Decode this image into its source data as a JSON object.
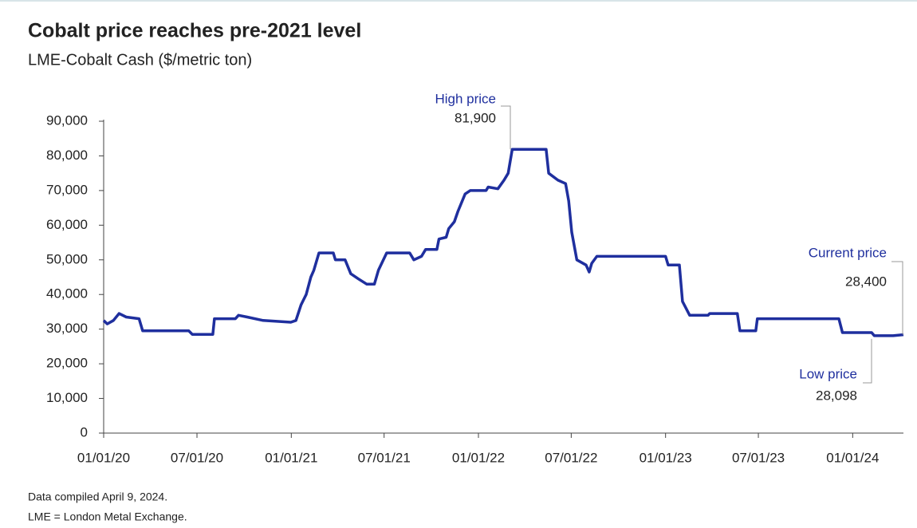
{
  "chart_data": {
    "type": "line",
    "title": "Cobalt price reaches pre-2021 level",
    "subtitle": "LME-Cobalt Cash ($/metric ton)",
    "x": [
      "2020-01-01",
      "2020-01-08",
      "2020-01-20",
      "2020-01-31",
      "2020-02-14",
      "2020-03-10",
      "2020-03-17",
      "2020-06-15",
      "2020-06-22",
      "2020-08-01",
      "2020-08-04",
      "2020-09-14",
      "2020-09-20",
      "2020-10-07",
      "2020-11-07",
      "2020-12-31",
      "2021-01-10",
      "2021-01-20",
      "2021-01-30",
      "2021-02-08",
      "2021-02-14",
      "2021-02-24",
      "2021-03-24",
      "2021-03-28",
      "2021-04-16",
      "2021-04-27",
      "2021-05-12",
      "2021-05-28",
      "2021-06-12",
      "2021-06-20",
      "2021-07-06",
      "2021-08-20",
      "2021-08-28",
      "2021-09-12",
      "2021-09-20",
      "2021-10-12",
      "2021-10-16",
      "2021-10-30",
      "2021-11-04",
      "2021-11-15",
      "2021-11-22",
      "2021-12-06",
      "2021-12-16",
      "2022-01-16",
      "2022-01-20",
      "2022-02-08",
      "2022-02-20",
      "2022-02-28",
      "2022-03-08",
      "2022-05-13",
      "2022-05-18",
      "2022-06-05",
      "2022-06-20",
      "2022-06-26",
      "2022-07-02",
      "2022-07-12",
      "2022-07-30",
      "2022-08-05",
      "2022-08-10",
      "2022-08-20",
      "2023-01-01",
      "2023-01-06",
      "2023-01-28",
      "2023-02-03",
      "2023-02-17",
      "2023-03-25",
      "2023-03-28",
      "2023-05-21",
      "2023-05-26",
      "2023-06-26",
      "2023-06-29",
      "2023-12-05",
      "2023-12-12",
      "2024-02-07",
      "2024-02-12",
      "2024-03-20",
      "2024-04-09"
    ],
    "values": [
      32500,
      31500,
      32500,
      34500,
      33500,
      33000,
      29500,
      29500,
      28500,
      28500,
      33000,
      33000,
      34000,
      33500,
      32500,
      32000,
      32500,
      37000,
      40000,
      45000,
      47000,
      52000,
      52000,
      50000,
      50000,
      46000,
      44500,
      43000,
      43000,
      47000,
      52000,
      52000,
      50000,
      51000,
      53000,
      53000,
      56000,
      56500,
      59000,
      61000,
      64000,
      69000,
      70000,
      70000,
      71000,
      70500,
      73000,
      75000,
      81900,
      81900,
      75000,
      73000,
      72000,
      67000,
      58000,
      50000,
      48500,
      46500,
      49000,
      51000,
      51000,
      48500,
      48500,
      38000,
      34000,
      34000,
      34500,
      34500,
      29500,
      29500,
      33000,
      33000,
      29000,
      29000,
      28098,
      28098,
      28400
    ],
    "color": "#1f2f9e",
    "xlim": [
      "2020-01-01",
      "2024-04-09"
    ],
    "xticks": [
      {
        "value": "2020-01-01",
        "label": "01/01/20"
      },
      {
        "value": "2020-07-01",
        "label": "07/01/20"
      },
      {
        "value": "2021-01-01",
        "label": "01/01/21"
      },
      {
        "value": "2021-07-01",
        "label": "07/01/21"
      },
      {
        "value": "2022-01-01",
        "label": "01/01/22"
      },
      {
        "value": "2022-07-01",
        "label": "07/01/22"
      },
      {
        "value": "2023-01-01",
        "label": "01/01/23"
      },
      {
        "value": "2023-07-01",
        "label": "07/01/23"
      },
      {
        "value": "2024-01-01",
        "label": "01/01/24"
      }
    ],
    "ylim": [
      0,
      90000
    ],
    "yticks": [
      0,
      {
        "value": 10000,
        "label": "10,000"
      },
      {
        "value": 20000,
        "label": "20,000"
      },
      {
        "value": 30000,
        "label": "30,000"
      },
      {
        "value": 40000,
        "label": "40,000"
      },
      {
        "value": 50000,
        "label": "50,000"
      },
      {
        "value": 60000,
        "label": "60,000"
      },
      {
        "value": 70000,
        "label": "70,000"
      },
      {
        "value": 80000,
        "label": "80,000"
      },
      {
        "value": 90000,
        "label": "90,000"
      }
    ],
    "grid": false,
    "annotations": [
      {
        "text": "High price",
        "value": {
          "value": 81900,
          "label": "81,900"
        }
      },
      {
        "text": "Current price",
        "value": {
          "value": 28400,
          "label": "28,400"
        }
      },
      {
        "text": "Low price",
        "value": {
          "value": 28098,
          "label": "28,098"
        }
      }
    ],
    "notes": [
      "Data compiled April 9, 2024.",
      "LME = London Metal Exchange."
    ]
  }
}
